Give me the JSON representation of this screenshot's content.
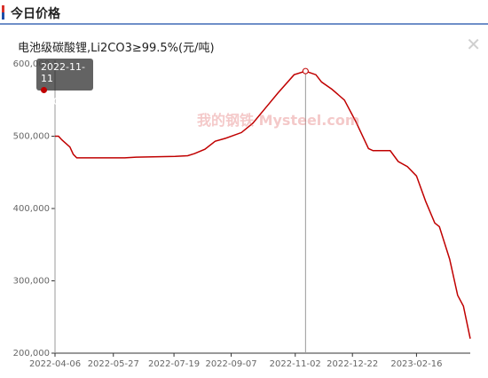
{
  "header": {
    "title": "今日价格"
  },
  "chart_data": {
    "type": "line",
    "title": "电池级碳酸锂,Li2CO3≥99.5%(元/吨)",
    "xlabel": "",
    "ylabel": "",
    "ylim": [
      200000,
      600000
    ],
    "y_ticks": [
      200000,
      300000,
      400000,
      500000,
      600000
    ],
    "y_tick_labels": [
      "200,000",
      "300,000",
      "400,000",
      "500,000",
      "600,000"
    ],
    "x_tick_labels": [
      "2022-04-06",
      "2022-05-27",
      "2022-07-19",
      "2022-09-07",
      "2022-11-02",
      "2022-12-22",
      "2023-02-16"
    ],
    "x_range": [
      "2022-04-06",
      "2023-04-04"
    ],
    "series": [
      {
        "color": "#c00000",
        "points": [
          [
            "2022-04-06",
            500000
          ],
          [
            "2022-04-09",
            500000
          ],
          [
            "2022-04-12",
            495000
          ],
          [
            "2022-04-19",
            485000
          ],
          [
            "2022-04-22",
            475000
          ],
          [
            "2022-04-25",
            470000
          ],
          [
            "2022-05-16",
            470000
          ],
          [
            "2022-06-06",
            470000
          ],
          [
            "2022-06-16",
            471000
          ],
          [
            "2022-07-20",
            472000
          ],
          [
            "2022-07-31",
            473000
          ],
          [
            "2022-08-06",
            476000
          ],
          [
            "2022-08-15",
            482000
          ],
          [
            "2022-08-24",
            493000
          ],
          [
            "2022-09-02",
            497000
          ],
          [
            "2022-09-16",
            505000
          ],
          [
            "2022-09-26",
            518000
          ],
          [
            "2022-10-06",
            537000
          ],
          [
            "2022-10-18",
            560000
          ],
          [
            "2022-11-01",
            585000
          ],
          [
            "2022-11-11",
            590000
          ],
          [
            "2022-11-20",
            585000
          ],
          [
            "2022-11-25",
            575000
          ],
          [
            "2022-12-04",
            565000
          ],
          [
            "2022-12-15",
            550000
          ],
          [
            "2022-12-25",
            520000
          ],
          [
            "2023-01-05",
            483000
          ],
          [
            "2023-01-09",
            480000
          ],
          [
            "2023-01-24",
            480000
          ],
          [
            "2023-01-31",
            465000
          ],
          [
            "2023-02-08",
            458000
          ],
          [
            "2023-02-16",
            445000
          ],
          [
            "2023-02-24",
            410000
          ],
          [
            "2023-03-04",
            380000
          ],
          [
            "2023-03-08",
            375000
          ],
          [
            "2023-03-17",
            330000
          ],
          [
            "2023-03-24",
            280000
          ],
          [
            "2023-03-29",
            265000
          ],
          [
            "2023-04-04",
            220000
          ]
        ]
      }
    ],
    "tooltip": {
      "date": "2022-11-11",
      "value": "590,000"
    },
    "watermark": "我的钢铁 Mysteel.com",
    "legend": "none",
    "grid": false
  }
}
